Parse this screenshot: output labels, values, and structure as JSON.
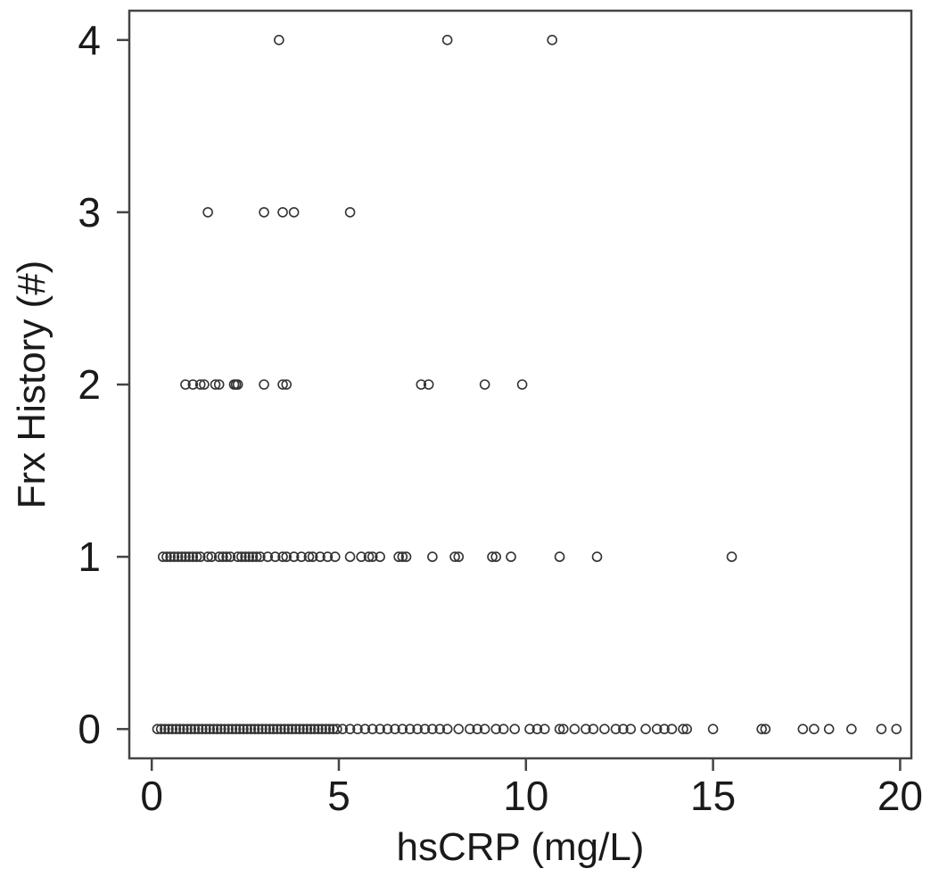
{
  "chart_data": {
    "type": "scatter",
    "xlabel": "hsCRP (mg/L)",
    "ylabel": "Frx History (#)",
    "xlim": [
      -0.6,
      20.3
    ],
    "ylim": [
      -0.17,
      4.17
    ],
    "xticks": [
      0,
      5,
      10,
      15,
      20
    ],
    "xtick_labels": [
      "0",
      "5",
      "10",
      "15",
      "20"
    ],
    "yticks": [
      0,
      1,
      2,
      3,
      4
    ],
    "ytick_labels": [
      "0",
      "1",
      "2",
      "3",
      "4"
    ],
    "grid": false,
    "legend": "none",
    "marker": "open-circle",
    "marker_color": "#333333",
    "series": [
      {
        "points": [
          {
            "x": 3.4,
            "y": 4
          },
          {
            "x": 7.9,
            "y": 4
          },
          {
            "x": 10.7,
            "y": 4
          },
          {
            "x": 1.5,
            "y": 3
          },
          {
            "x": 3.0,
            "y": 3
          },
          {
            "x": 3.5,
            "y": 3
          },
          {
            "x": 3.8,
            "y": 3
          },
          {
            "x": 5.3,
            "y": 3
          },
          {
            "x": 0.9,
            "y": 2
          },
          {
            "x": 1.1,
            "y": 2
          },
          {
            "x": 1.3,
            "y": 2
          },
          {
            "x": 1.4,
            "y": 2
          },
          {
            "x": 1.7,
            "y": 2
          },
          {
            "x": 1.8,
            "y": 2
          },
          {
            "x": 2.2,
            "y": 2
          },
          {
            "x": 2.25,
            "y": 2
          },
          {
            "x": 2.3,
            "y": 2
          },
          {
            "x": 3.0,
            "y": 2
          },
          {
            "x": 3.5,
            "y": 2
          },
          {
            "x": 3.6,
            "y": 2
          },
          {
            "x": 7.2,
            "y": 2
          },
          {
            "x": 7.4,
            "y": 2
          },
          {
            "x": 8.9,
            "y": 2
          },
          {
            "x": 9.9,
            "y": 2
          },
          {
            "x": 0.3,
            "y": 1
          },
          {
            "x": 0.4,
            "y": 1
          },
          {
            "x": 0.5,
            "y": 1
          },
          {
            "x": 0.6,
            "y": 1
          },
          {
            "x": 0.7,
            "y": 1
          },
          {
            "x": 0.8,
            "y": 1
          },
          {
            "x": 0.9,
            "y": 1
          },
          {
            "x": 1.0,
            "y": 1
          },
          {
            "x": 1.1,
            "y": 1
          },
          {
            "x": 1.2,
            "y": 1
          },
          {
            "x": 1.3,
            "y": 1
          },
          {
            "x": 1.5,
            "y": 1
          },
          {
            "x": 1.6,
            "y": 1
          },
          {
            "x": 1.8,
            "y": 1
          },
          {
            "x": 1.9,
            "y": 1
          },
          {
            "x": 2.0,
            "y": 1
          },
          {
            "x": 2.1,
            "y": 1
          },
          {
            "x": 2.3,
            "y": 1
          },
          {
            "x": 2.4,
            "y": 1
          },
          {
            "x": 2.5,
            "y": 1
          },
          {
            "x": 2.6,
            "y": 1
          },
          {
            "x": 2.7,
            "y": 1
          },
          {
            "x": 2.8,
            "y": 1
          },
          {
            "x": 2.9,
            "y": 1
          },
          {
            "x": 3.1,
            "y": 1
          },
          {
            "x": 3.3,
            "y": 1
          },
          {
            "x": 3.5,
            "y": 1
          },
          {
            "x": 3.6,
            "y": 1
          },
          {
            "x": 3.8,
            "y": 1
          },
          {
            "x": 4.0,
            "y": 1
          },
          {
            "x": 4.2,
            "y": 1
          },
          {
            "x": 4.3,
            "y": 1
          },
          {
            "x": 4.5,
            "y": 1
          },
          {
            "x": 4.7,
            "y": 1
          },
          {
            "x": 4.9,
            "y": 1
          },
          {
            "x": 5.3,
            "y": 1
          },
          {
            "x": 5.6,
            "y": 1
          },
          {
            "x": 5.8,
            "y": 1
          },
          {
            "x": 5.9,
            "y": 1
          },
          {
            "x": 6.1,
            "y": 1
          },
          {
            "x": 6.6,
            "y": 1
          },
          {
            "x": 6.7,
            "y": 1
          },
          {
            "x": 6.8,
            "y": 1
          },
          {
            "x": 7.5,
            "y": 1
          },
          {
            "x": 8.1,
            "y": 1
          },
          {
            "x": 8.2,
            "y": 1
          },
          {
            "x": 9.1,
            "y": 1
          },
          {
            "x": 9.2,
            "y": 1
          },
          {
            "x": 9.6,
            "y": 1
          },
          {
            "x": 10.9,
            "y": 1
          },
          {
            "x": 11.9,
            "y": 1
          },
          {
            "x": 15.5,
            "y": 1
          },
          {
            "x": 0.15,
            "y": 0
          },
          {
            "x": 0.25,
            "y": 0
          },
          {
            "x": 0.35,
            "y": 0
          },
          {
            "x": 0.45,
            "y": 0
          },
          {
            "x": 0.55,
            "y": 0
          },
          {
            "x": 0.65,
            "y": 0
          },
          {
            "x": 0.75,
            "y": 0
          },
          {
            "x": 0.85,
            "y": 0
          },
          {
            "x": 0.95,
            "y": 0
          },
          {
            "x": 1.05,
            "y": 0
          },
          {
            "x": 1.15,
            "y": 0
          },
          {
            "x": 1.25,
            "y": 0
          },
          {
            "x": 1.35,
            "y": 0
          },
          {
            "x": 1.45,
            "y": 0
          },
          {
            "x": 1.55,
            "y": 0
          },
          {
            "x": 1.65,
            "y": 0
          },
          {
            "x": 1.75,
            "y": 0
          },
          {
            "x": 1.85,
            "y": 0
          },
          {
            "x": 1.95,
            "y": 0
          },
          {
            "x": 2.05,
            "y": 0
          },
          {
            "x": 2.15,
            "y": 0
          },
          {
            "x": 2.25,
            "y": 0
          },
          {
            "x": 2.35,
            "y": 0
          },
          {
            "x": 2.45,
            "y": 0
          },
          {
            "x": 2.55,
            "y": 0
          },
          {
            "x": 2.65,
            "y": 0
          },
          {
            "x": 2.75,
            "y": 0
          },
          {
            "x": 2.85,
            "y": 0
          },
          {
            "x": 2.95,
            "y": 0
          },
          {
            "x": 3.05,
            "y": 0
          },
          {
            "x": 3.15,
            "y": 0
          },
          {
            "x": 3.25,
            "y": 0
          },
          {
            "x": 3.35,
            "y": 0
          },
          {
            "x": 3.45,
            "y": 0
          },
          {
            "x": 3.55,
            "y": 0
          },
          {
            "x": 3.65,
            "y": 0
          },
          {
            "x": 3.75,
            "y": 0
          },
          {
            "x": 3.85,
            "y": 0
          },
          {
            "x": 3.95,
            "y": 0
          },
          {
            "x": 4.05,
            "y": 0
          },
          {
            "x": 4.15,
            "y": 0
          },
          {
            "x": 4.25,
            "y": 0
          },
          {
            "x": 4.35,
            "y": 0
          },
          {
            "x": 4.45,
            "y": 0
          },
          {
            "x": 4.55,
            "y": 0
          },
          {
            "x": 4.65,
            "y": 0
          },
          {
            "x": 4.75,
            "y": 0
          },
          {
            "x": 4.85,
            "y": 0
          },
          {
            "x": 4.95,
            "y": 0
          },
          {
            "x": 5.1,
            "y": 0
          },
          {
            "x": 5.3,
            "y": 0
          },
          {
            "x": 5.5,
            "y": 0
          },
          {
            "x": 5.7,
            "y": 0
          },
          {
            "x": 5.9,
            "y": 0
          },
          {
            "x": 6.1,
            "y": 0
          },
          {
            "x": 6.3,
            "y": 0
          },
          {
            "x": 6.5,
            "y": 0
          },
          {
            "x": 6.7,
            "y": 0
          },
          {
            "x": 6.9,
            "y": 0
          },
          {
            "x": 7.1,
            "y": 0
          },
          {
            "x": 7.3,
            "y": 0
          },
          {
            "x": 7.5,
            "y": 0
          },
          {
            "x": 7.7,
            "y": 0
          },
          {
            "x": 7.9,
            "y": 0
          },
          {
            "x": 8.2,
            "y": 0
          },
          {
            "x": 8.5,
            "y": 0
          },
          {
            "x": 8.7,
            "y": 0
          },
          {
            "x": 8.9,
            "y": 0
          },
          {
            "x": 9.2,
            "y": 0
          },
          {
            "x": 9.4,
            "y": 0
          },
          {
            "x": 9.7,
            "y": 0
          },
          {
            "x": 10.1,
            "y": 0
          },
          {
            "x": 10.3,
            "y": 0
          },
          {
            "x": 10.5,
            "y": 0
          },
          {
            "x": 10.9,
            "y": 0
          },
          {
            "x": 11.0,
            "y": 0
          },
          {
            "x": 11.3,
            "y": 0
          },
          {
            "x": 11.6,
            "y": 0
          },
          {
            "x": 11.8,
            "y": 0
          },
          {
            "x": 12.1,
            "y": 0
          },
          {
            "x": 12.4,
            "y": 0
          },
          {
            "x": 12.6,
            "y": 0
          },
          {
            "x": 12.8,
            "y": 0
          },
          {
            "x": 13.2,
            "y": 0
          },
          {
            "x": 13.5,
            "y": 0
          },
          {
            "x": 13.7,
            "y": 0
          },
          {
            "x": 13.9,
            "y": 0
          },
          {
            "x": 14.2,
            "y": 0
          },
          {
            "x": 14.3,
            "y": 0
          },
          {
            "x": 15.0,
            "y": 0
          },
          {
            "x": 16.3,
            "y": 0
          },
          {
            "x": 16.4,
            "y": 0
          },
          {
            "x": 17.4,
            "y": 0
          },
          {
            "x": 17.7,
            "y": 0
          },
          {
            "x": 18.1,
            "y": 0
          },
          {
            "x": 18.7,
            "y": 0
          },
          {
            "x": 19.5,
            "y": 0
          },
          {
            "x": 19.9,
            "y": 0
          }
        ]
      }
    ]
  }
}
